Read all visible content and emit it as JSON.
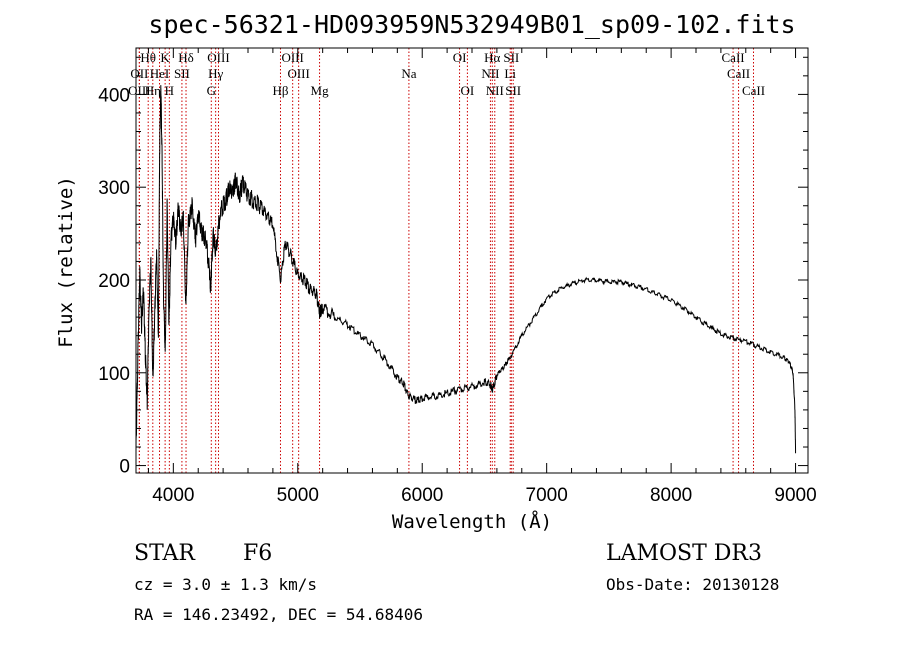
{
  "chart_data": {
    "type": "line",
    "title": "spec-56321-HD093959N532949B01_sp09-102.fits",
    "xlabel": "Wavelength (Å)",
    "ylabel": "Flux (relative)",
    "xlim": [
      3700,
      9100
    ],
    "ylim": [
      -8,
      450
    ],
    "x_ticks": [
      4000,
      5000,
      6000,
      7000,
      8000,
      9000
    ],
    "y_ticks": [
      0,
      100,
      200,
      300,
      400
    ],
    "grid": false,
    "series": [
      {
        "color": "#000000",
        "points": [
          [
            3700,
            15
          ],
          [
            3715,
            120
          ],
          [
            3730,
            210
          ],
          [
            3745,
            150
          ],
          [
            3760,
            190
          ],
          [
            3775,
            120
          ],
          [
            3790,
            70
          ],
          [
            3805,
            170
          ],
          [
            3820,
            220
          ],
          [
            3835,
            90
          ],
          [
            3850,
            160
          ],
          [
            3865,
            230
          ],
          [
            3880,
            140
          ],
          [
            3890,
            340
          ],
          [
            3900,
            410
          ],
          [
            3910,
            330
          ],
          [
            3920,
            190
          ],
          [
            3935,
            120
          ],
          [
            3950,
            280
          ],
          [
            3965,
            150
          ],
          [
            3980,
            240
          ],
          [
            4000,
            270
          ],
          [
            4020,
            240
          ],
          [
            4040,
            280
          ],
          [
            4060,
            250
          ],
          [
            4080,
            270
          ],
          [
            4101,
            170
          ],
          [
            4120,
            260
          ],
          [
            4150,
            280
          ],
          [
            4180,
            245
          ],
          [
            4200,
            270
          ],
          [
            4230,
            250
          ],
          [
            4260,
            245
          ],
          [
            4290,
            210
          ],
          [
            4300,
            190
          ],
          [
            4320,
            250
          ],
          [
            4340,
            230
          ],
          [
            4380,
            275
          ],
          [
            4420,
            285
          ],
          [
            4450,
            300
          ],
          [
            4480,
            295
          ],
          [
            4500,
            310
          ],
          [
            4530,
            290
          ],
          [
            4560,
            305
          ],
          [
            4600,
            290
          ],
          [
            4650,
            285
          ],
          [
            4700,
            280
          ],
          [
            4750,
            270
          ],
          [
            4800,
            260
          ],
          [
            4861,
            200
          ],
          [
            4900,
            240
          ],
          [
            4950,
            225
          ],
          [
            5000,
            205
          ],
          [
            5050,
            200
          ],
          [
            5100,
            190
          ],
          [
            5150,
            185
          ],
          [
            5175,
            165
          ],
          [
            5200,
            170
          ],
          [
            5300,
            160
          ],
          [
            5400,
            152
          ],
          [
            5500,
            140
          ],
          [
            5600,
            130
          ],
          [
            5700,
            115
          ],
          [
            5800,
            95
          ],
          [
            5850,
            88
          ],
          [
            5893,
            75
          ],
          [
            5950,
            70
          ],
          [
            6000,
            72
          ],
          [
            6100,
            75
          ],
          [
            6200,
            78
          ],
          [
            6300,
            82
          ],
          [
            6400,
            85
          ],
          [
            6500,
            90
          ],
          [
            6550,
            87
          ],
          [
            6563,
            80
          ],
          [
            6600,
            98
          ],
          [
            6650,
            105
          ],
          [
            6700,
            115
          ],
          [
            6800,
            140
          ],
          [
            6900,
            160
          ],
          [
            7000,
            180
          ],
          [
            7100,
            190
          ],
          [
            7200,
            196
          ],
          [
            7300,
            200
          ],
          [
            7400,
            200
          ],
          [
            7500,
            198
          ],
          [
            7600,
            198
          ],
          [
            7700,
            194
          ],
          [
            7800,
            190
          ],
          [
            7900,
            184
          ],
          [
            8000,
            178
          ],
          [
            8100,
            170
          ],
          [
            8200,
            160
          ],
          [
            8300,
            150
          ],
          [
            8400,
            142
          ],
          [
            8500,
            137
          ],
          [
            8600,
            134
          ],
          [
            8700,
            128
          ],
          [
            8800,
            122
          ],
          [
            8900,
            117
          ],
          [
            8950,
            112
          ],
          [
            8980,
            100
          ],
          [
            8995,
            60
          ],
          [
            9000,
            15
          ]
        ]
      }
    ],
    "lines": [
      {
        "name": "Hθ",
        "wl": 3798,
        "row": 1
      },
      {
        "name": "OII",
        "wl": 3727,
        "row": 2
      },
      {
        "name": "OIII",
        "wl": 3727,
        "row": 3
      },
      {
        "name": "Hη",
        "wl": 3835,
        "row": 3
      },
      {
        "name": "K",
        "wl": 3934,
        "row": 1
      },
      {
        "name": "HeI",
        "wl": 3889,
        "row": 2
      },
      {
        "name": "H",
        "wl": 3968,
        "row": 3
      },
      {
        "name": "SII",
        "wl": 4069,
        "row": 2
      },
      {
        "name": "Hδ",
        "wl": 4102,
        "row": 1
      },
      {
        "name": "OIII",
        "wl": 4363,
        "row": 1
      },
      {
        "name": "Hγ",
        "wl": 4340,
        "row": 2
      },
      {
        "name": "G",
        "wl": 4305,
        "row": 3
      },
      {
        "name": "Hβ",
        "wl": 4861,
        "row": 3
      },
      {
        "name": "OIII",
        "wl": 4959,
        "row": 1
      },
      {
        "name": "OIII",
        "wl": 5007,
        "row": 2
      },
      {
        "name": "Mg",
        "wl": 5175,
        "row": 3
      },
      {
        "name": "Na",
        "wl": 5893,
        "row": 2
      },
      {
        "name": "OI",
        "wl": 6300,
        "row": 1
      },
      {
        "name": "OI",
        "wl": 6363,
        "row": 3
      },
      {
        "name": "Hα",
        "wl": 6563,
        "row": 1
      },
      {
        "name": "NII",
        "wl": 6548,
        "row": 2
      },
      {
        "name": "NII",
        "wl": 6583,
        "row": 3
      },
      {
        "name": "SII",
        "wl": 6716,
        "row": 1
      },
      {
        "name": "Li",
        "wl": 6707,
        "row": 2
      },
      {
        "name": "SII",
        "wl": 6731,
        "row": 3
      },
      {
        "name": "CaII",
        "wl": 8498,
        "row": 1
      },
      {
        "name": "CaII",
        "wl": 8542,
        "row": 2
      },
      {
        "name": "CaII",
        "wl": 8662,
        "row": 3
      }
    ]
  },
  "info": {
    "class": "STAR",
    "subclass": "F6",
    "survey": "LAMOST DR3",
    "cz": "cz = 3.0 ± 1.3 km/s",
    "obs_date": "Obs-Date: 20130128",
    "coords": "RA = 146.23492, DEC =  54.68406"
  },
  "colors": {
    "spectrum": "#000000",
    "line_markers": "#cc0000"
  }
}
